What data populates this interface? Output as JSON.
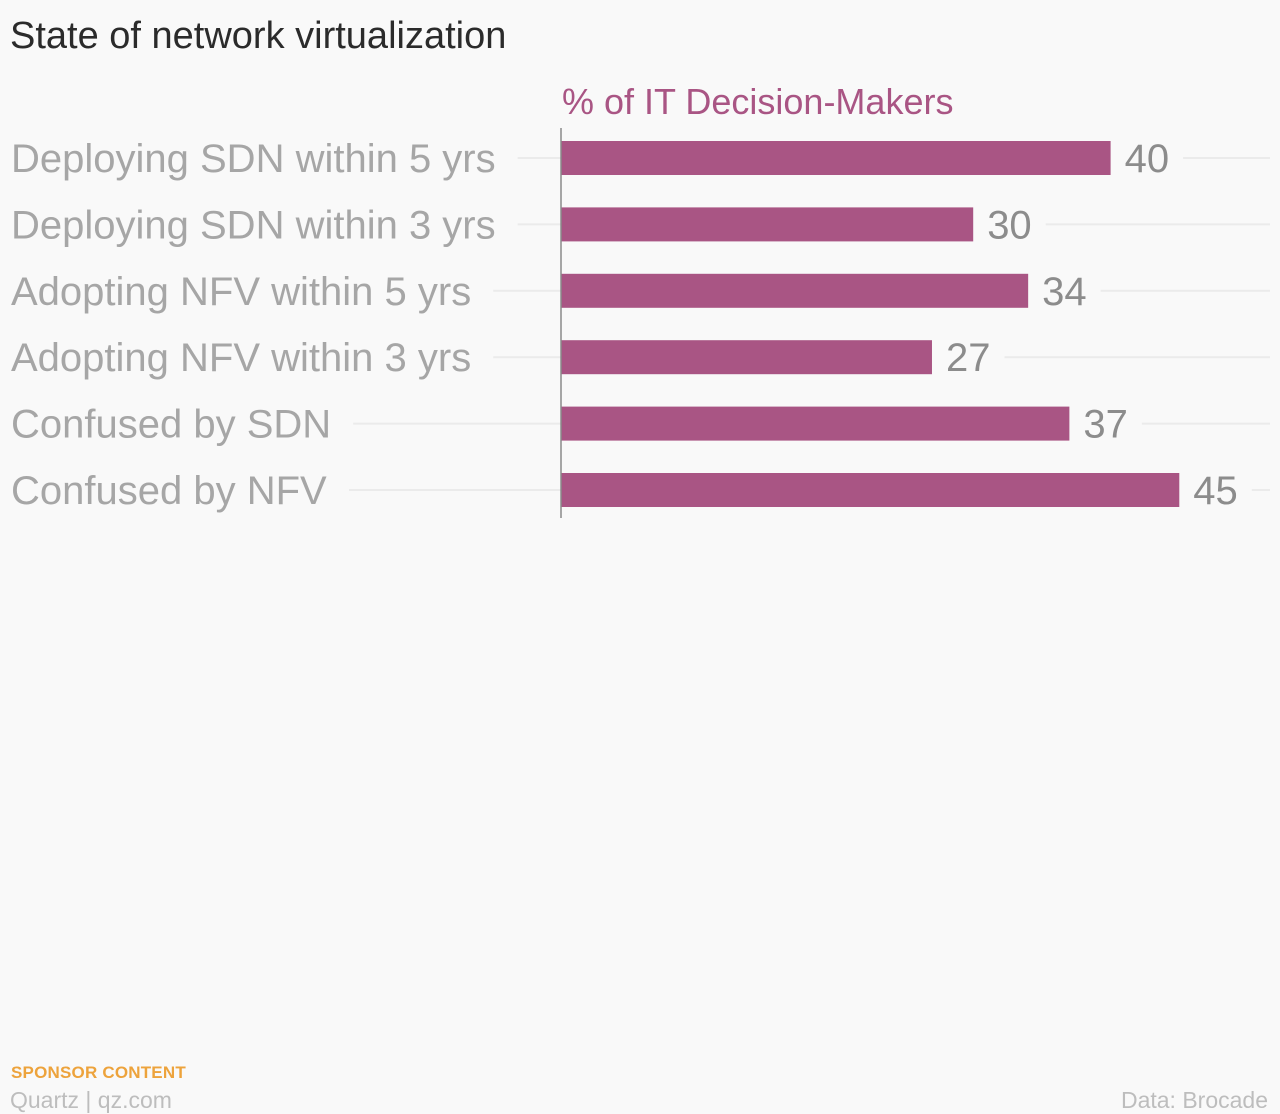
{
  "chart_data": {
    "type": "bar",
    "orientation": "horizontal",
    "title": "State of network virtualization",
    "subtitle": "% of IT Decision-Makers",
    "categories": [
      "Deploying SDN within 5 yrs",
      "Deploying SDN within 3 yrs",
      "Adopting NFV within 5 yrs",
      "Adopting NFV within 3 yrs",
      "Confused by SDN",
      "Confused by NFV"
    ],
    "values": [
      40,
      30,
      34,
      27,
      37,
      45
    ],
    "value_labels": [
      "40",
      "30",
      "34",
      "27",
      "37",
      "45"
    ],
    "xlim": [
      0,
      45
    ],
    "grid": true,
    "legend": "none"
  },
  "footer": {
    "sponsor_label": "SPONSOR CONTENT",
    "brand": "Quartz | qz.com",
    "source": "Data: Brocade"
  },
  "colors": {
    "background": "#f9f9f9",
    "bar": "#a95584",
    "subtitle": "#a95584",
    "title": "#2b2b2b",
    "category_label": "#a6a6a6",
    "value_label": "#8c8c8c",
    "gridline": "#ebebeb",
    "axis": "#8a8a8a",
    "sponsor": "#eda33c",
    "footer_text": "#bdbdbd"
  }
}
